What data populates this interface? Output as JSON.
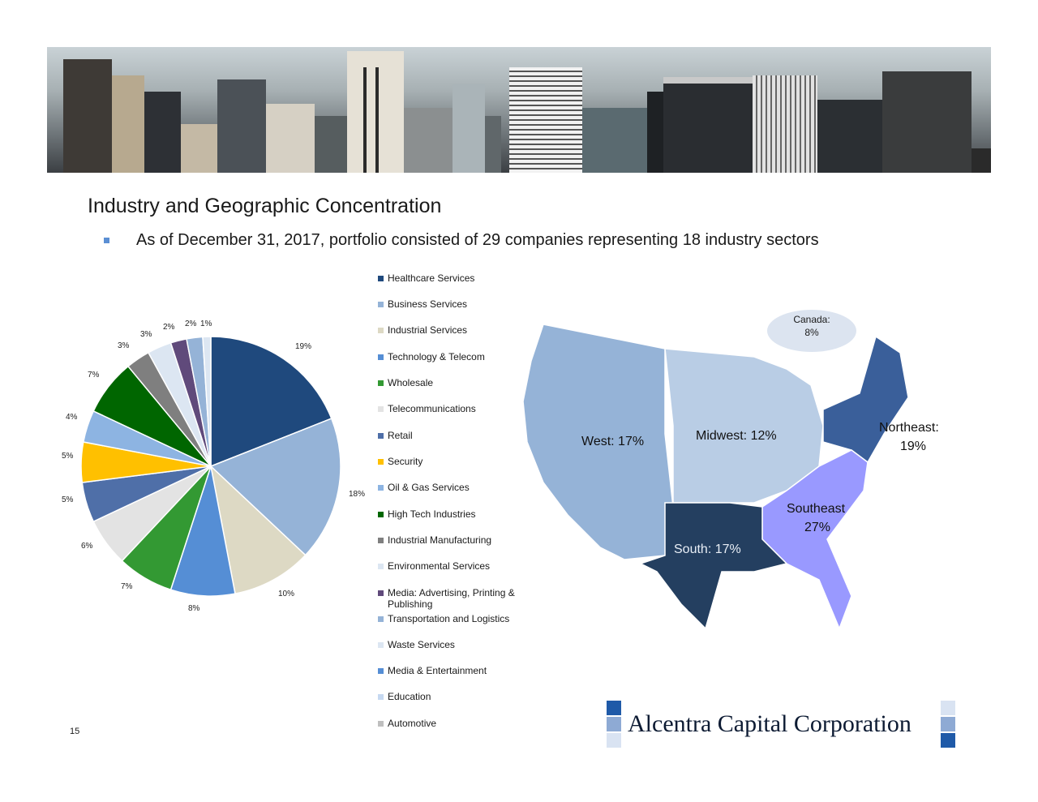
{
  "header": {
    "banner_alt": "city-skyline-photo",
    "title": "Industry and Geographic Concentration",
    "bullet": "As of December 31, 2017, portfolio consisted of 29 companies representing 18 industry sectors"
  },
  "legend": {
    "items": [
      {
        "label": "Healthcare Services",
        "color": "#1f497d"
      },
      {
        "label": "Business Services",
        "color": "#95b3d7"
      },
      {
        "label": "Industrial Services",
        "color": "#ddd9c4"
      },
      {
        "label": "Technology & Telecom",
        "color": "#558ed5"
      },
      {
        "label": "Wholesale",
        "color": "#339933"
      },
      {
        "label": "Telecommunications",
        "color": "#e3e3e3"
      },
      {
        "label": "Retail",
        "color": "#4f6fa8"
      },
      {
        "label": "Security",
        "color": "#ffc000"
      },
      {
        "label": "Oil & Gas Services",
        "color": "#8db4e2"
      },
      {
        "label": "High Tech Industries",
        "color": "#006600"
      },
      {
        "label": "Industrial Manufacturing",
        "color": "#7f7f7f"
      },
      {
        "label": "Environmental Services",
        "color": "#dce6f2"
      },
      {
        "label": "Media: Advertising, Printing & Publishing",
        "color": "#604a7b"
      },
      {
        "label": "Transportation and Logistics",
        "color": "#95b3d7"
      },
      {
        "label": "Waste Services",
        "color": "#dce6f2"
      },
      {
        "label": "Media & Entertainment",
        "color": "#558ed5"
      },
      {
        "label": "Education",
        "color": "#c6d9f1"
      },
      {
        "label": "Automotive",
        "color": "#bfbfbf"
      }
    ]
  },
  "chart_data": [
    {
      "type": "pie",
      "title": "Industry Concentration",
      "categories": [
        "Healthcare Services",
        "Business Services",
        "Industrial Services",
        "Technology & Telecom",
        "Wholesale",
        "Telecommunications",
        "Retail",
        "Security",
        "Oil & Gas Services",
        "High Tech Industries",
        "Industrial Manufacturing",
        "Environmental Services",
        "Media: Advertising, Printing & Publishing",
        "Transportation and Logistics",
        "Waste Services",
        "Media & Entertainment",
        "Education",
        "Automotive"
      ],
      "values": [
        19,
        18,
        10,
        8,
        7,
        6,
        5,
        5,
        4,
        7,
        3,
        3,
        2,
        2,
        1,
        0,
        0,
        0
      ],
      "labels": [
        "19%",
        "18%",
        "10%",
        "8%",
        "7%",
        "6%",
        "5%",
        "5%",
        "4%",
        "7%",
        "3%",
        "3%",
        "2%",
        "2%",
        "1%"
      ],
      "legend_position": "right"
    },
    {
      "type": "map",
      "title": "Geographic Concentration",
      "categories": [
        "Southeast",
        "Northeast",
        "West",
        "South",
        "Midwest",
        "Canada"
      ],
      "values": [
        27,
        19,
        17,
        17,
        12,
        8
      ],
      "colors": {
        "West": "#95b3d7",
        "Midwest": "#b9cde5",
        "South": "#243f60",
        "Southeast": "#9999ff",
        "Northeast": "#3a5f9a",
        "Canada": "#dce4f0"
      }
    }
  ],
  "pie_labels": {
    "healthcare": "19%",
    "business": "18%",
    "industrial": "10%",
    "tech": "8%",
    "wholesale": "7%",
    "telecom": "6%",
    "retail": "5%",
    "security": "5%",
    "oilgas": "4%",
    "hightech": "7%",
    "indmfg": "3%",
    "env": "3%",
    "mediaadv": "2%",
    "transport": "2%",
    "waste": "1%"
  },
  "map": {
    "west": "West: 17%",
    "midwest": "Midwest: 12%",
    "northeast_line1": "Northeast:",
    "northeast_line2": "19%",
    "southeast_line1": "Southeast",
    "southeast_line2": "27%",
    "south": "South: 17%",
    "canada_line1": "Canada:",
    "canada_line2": "8%"
  },
  "footer": {
    "page_number": "15",
    "logo_text": "Alcentra Capital Corporation"
  }
}
